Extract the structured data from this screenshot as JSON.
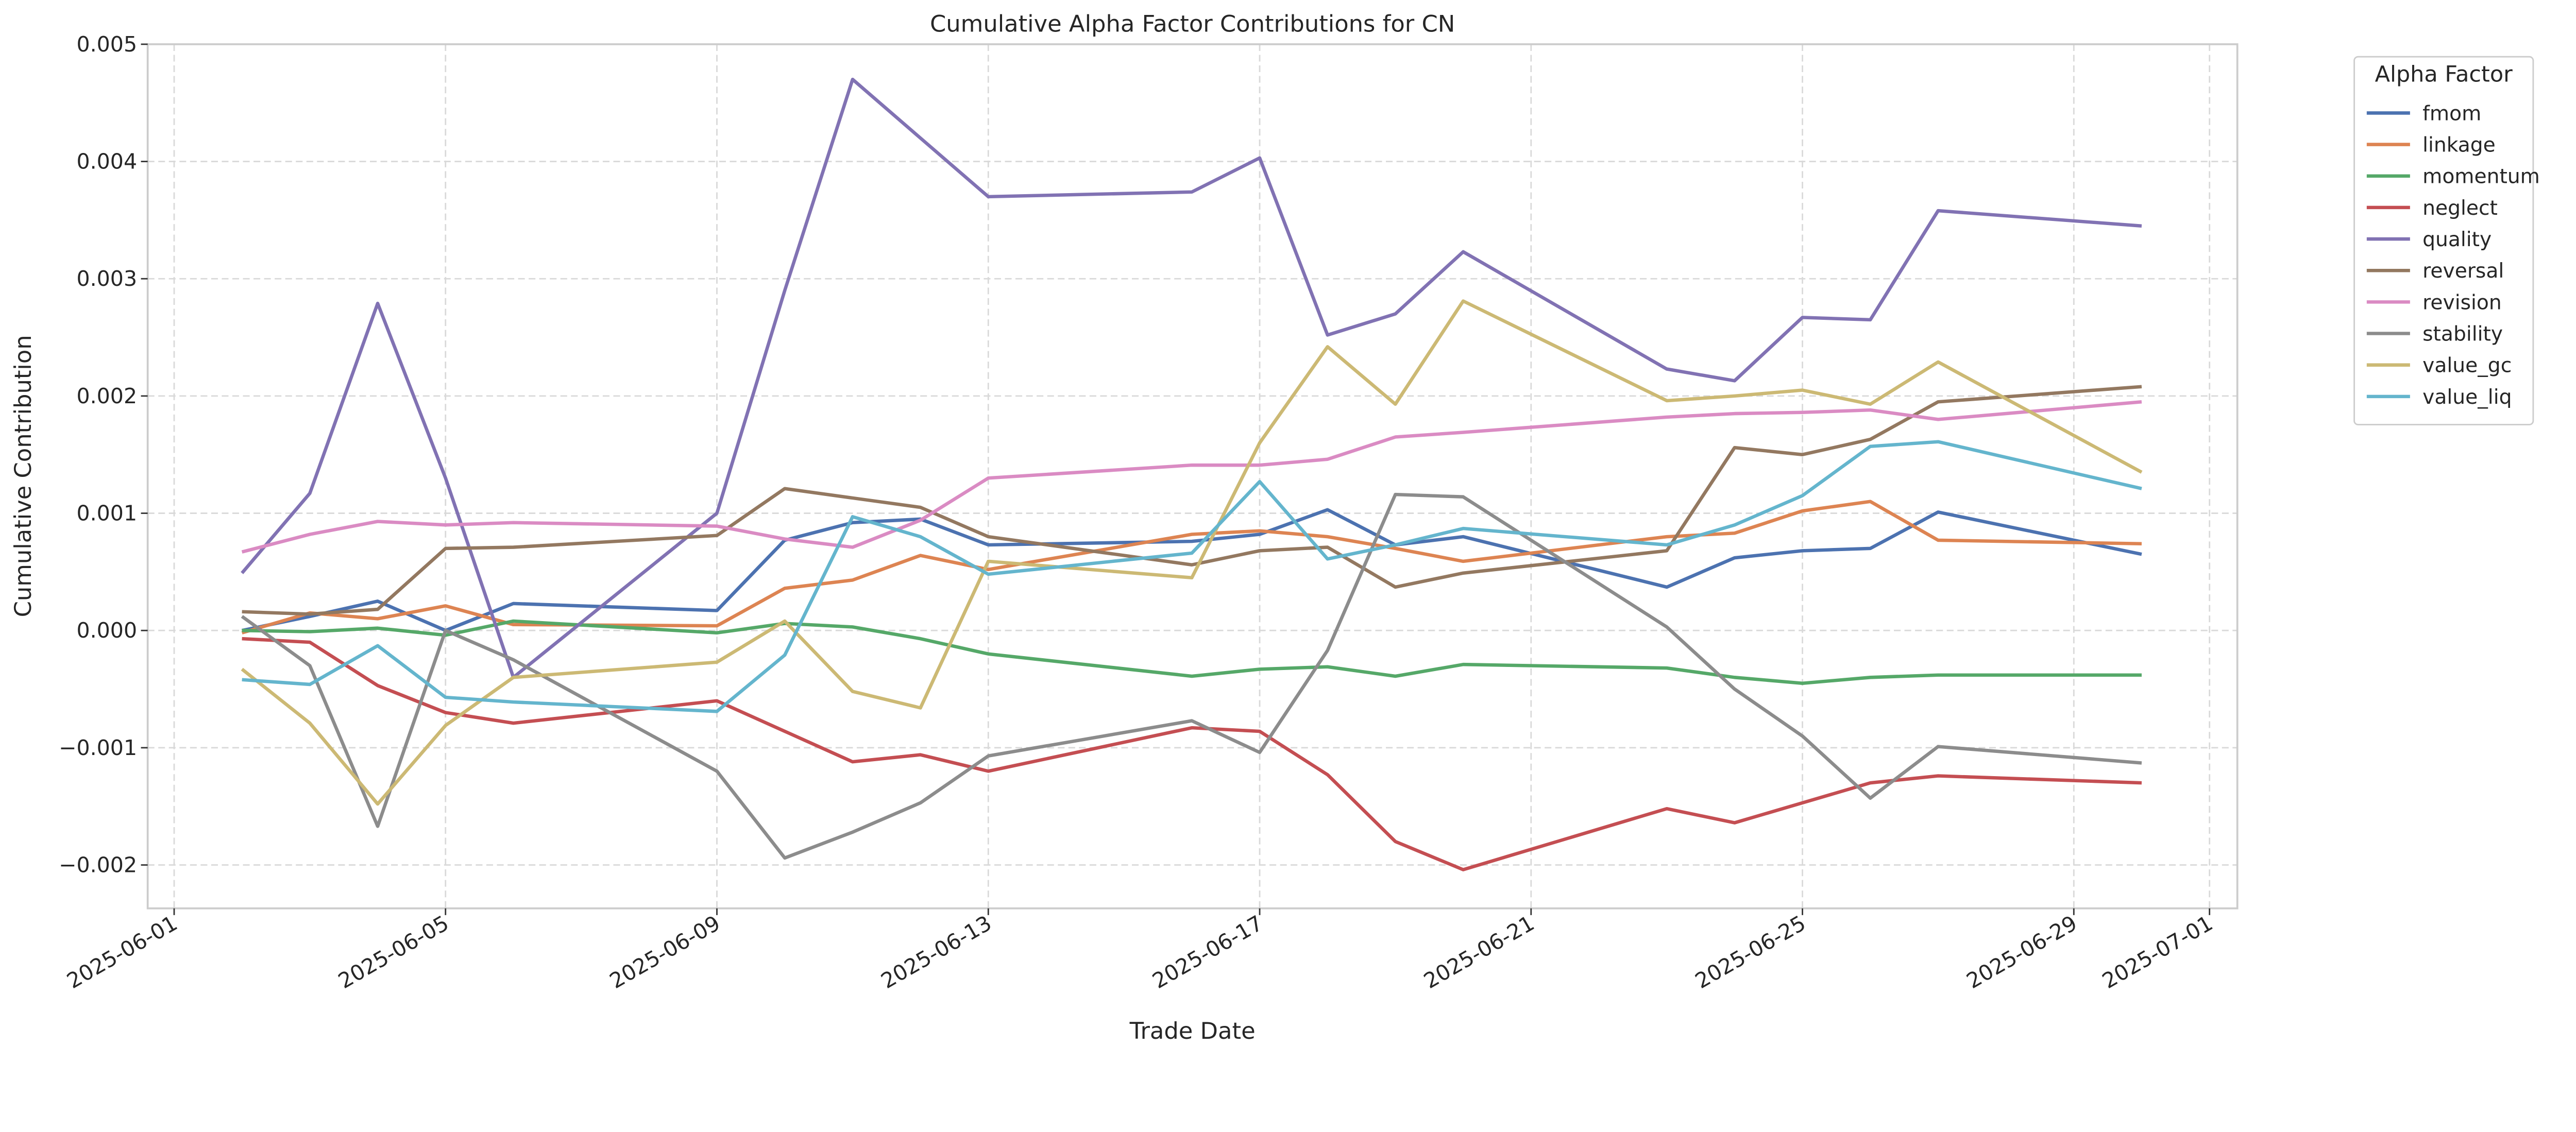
{
  "chart_data": {
    "type": "line",
    "title": "Cumulative Alpha Factor Contributions for CN",
    "xlabel": "Trade Date",
    "ylabel": "Cumulative Contribution",
    "legend_title": "Alpha Factor",
    "legend_placement": "outside-top-right",
    "grid": true,
    "ylim": [
      -0.00237,
      0.005
    ],
    "xlim": [
      "2025-05-31",
      "2025-07-01"
    ],
    "y_ticks": [
      -0.002,
      -0.001,
      0.0,
      0.001,
      0.002,
      0.003,
      0.004,
      0.005
    ],
    "y_tick_labels": [
      "−0.002",
      "−0.001",
      "0.000",
      "0.001",
      "0.002",
      "0.003",
      "0.004",
      "0.005"
    ],
    "x_tick_labels": [
      "2025-06-01",
      "2025-06-05",
      "2025-06-09",
      "2025-06-13",
      "2025-06-17",
      "2025-06-21",
      "2025-06-25",
      "2025-06-29",
      "2025-07-01"
    ],
    "x": [
      "2025-06-02",
      "2025-06-03",
      "2025-06-04",
      "2025-06-05",
      "2025-06-06",
      "2025-06-09",
      "2025-06-10",
      "2025-06-11",
      "2025-06-12",
      "2025-06-13",
      "2025-06-16",
      "2025-06-17",
      "2025-06-18",
      "2025-06-19",
      "2025-06-20",
      "2025-06-23",
      "2025-06-24",
      "2025-06-25",
      "2025-06-26",
      "2025-06-27",
      "2025-06-30"
    ],
    "series": [
      {
        "name": "fmom",
        "color": "#4c72b0",
        "values": [
          0.0,
          0.00012,
          0.00025,
          0.0,
          0.00023,
          0.00017,
          0.00077,
          0.00092,
          0.00095,
          0.00073,
          0.00076,
          0.00082,
          0.00103,
          0.00073,
          0.0008,
          0.00037,
          0.00062,
          0.00068,
          0.0007,
          0.00101,
          0.00065
        ]
      },
      {
        "name": "linkage",
        "color": "#dd8452",
        "values": [
          -2e-05,
          0.00015,
          0.0001,
          0.00021,
          5e-05,
          4e-05,
          0.00036,
          0.00043,
          0.00064,
          0.00052,
          0.00082,
          0.00085,
          0.0008,
          0.0007,
          0.00059,
          0.0008,
          0.00083,
          0.00102,
          0.0011,
          0.00077,
          0.00074
        ]
      },
      {
        "name": "momentum",
        "color": "#55a868",
        "values": [
          0.0,
          -1e-05,
          2e-05,
          -4e-05,
          8e-05,
          -2e-05,
          6e-05,
          3e-05,
          -7e-05,
          -0.0002,
          -0.00039,
          -0.00033,
          -0.00031,
          -0.00039,
          -0.00029,
          -0.00032,
          -0.0004,
          -0.00045,
          -0.0004,
          -0.00038,
          -0.00038
        ]
      },
      {
        "name": "neglect",
        "color": "#c44e52",
        "values": [
          -7e-05,
          -0.0001,
          -0.00047,
          -0.0007,
          -0.00079,
          -0.0006,
          -0.00086,
          -0.00112,
          -0.00106,
          -0.0012,
          -0.00083,
          -0.00086,
          -0.00123,
          -0.0018,
          -0.00204,
          -0.00152,
          -0.00164,
          -0.00147,
          -0.0013,
          -0.00124,
          -0.0013
        ]
      },
      {
        "name": "quality",
        "color": "#8172b3",
        "values": [
          0.00049,
          0.00117,
          0.00279,
          0.0013,
          -0.0004,
          0.001,
          0.0029,
          0.0047,
          0.0042,
          0.0037,
          0.00374,
          0.00403,
          0.00252,
          0.0027,
          0.00323,
          0.00223,
          0.00213,
          0.00267,
          0.00265,
          0.00358,
          0.00345
        ]
      },
      {
        "name": "reversal",
        "color": "#937860",
        "values": [
          0.00016,
          0.00014,
          0.00018,
          0.0007,
          0.00071,
          0.00081,
          0.00121,
          0.00113,
          0.00105,
          0.0008,
          0.00056,
          0.00068,
          0.00071,
          0.00037,
          0.00049,
          0.00068,
          0.00156,
          0.0015,
          0.00163,
          0.00195,
          0.00208
        ]
      },
      {
        "name": "revision",
        "color": "#da8bc3",
        "values": [
          0.00067,
          0.00082,
          0.00093,
          0.0009,
          0.00092,
          0.00089,
          0.00078,
          0.00071,
          0.00094,
          0.0013,
          0.00141,
          0.00141,
          0.00146,
          0.00165,
          0.00169,
          0.00182,
          0.00185,
          0.00186,
          0.00188,
          0.0018,
          0.00195
        ]
      },
      {
        "name": "stability",
        "color": "#8c8c8c",
        "values": [
          0.00012,
          -0.0003,
          -0.00167,
          0.0,
          -0.00025,
          -0.0012,
          -0.00194,
          -0.00172,
          -0.00147,
          -0.00107,
          -0.00077,
          -0.00104,
          -0.00017,
          0.00116,
          0.00114,
          3e-05,
          -0.0005,
          -0.0009,
          -0.00143,
          -0.00099,
          -0.00113
        ]
      },
      {
        "name": "value_gc",
        "color": "#ccb974",
        "values": [
          -0.00033,
          -0.00079,
          -0.00148,
          -0.00081,
          -0.0004,
          -0.00027,
          8e-05,
          -0.00052,
          -0.00066,
          0.00059,
          0.00045,
          0.0016,
          0.00242,
          0.00193,
          0.00281,
          0.00196,
          0.002,
          0.00205,
          0.00193,
          0.00229,
          0.00135
        ]
      },
      {
        "name": "value_liq",
        "color": "#64b5cd",
        "values": [
          -0.00042,
          -0.00046,
          -0.00013,
          -0.00057,
          -0.00061,
          -0.00069,
          -0.00021,
          0.00097,
          0.0008,
          0.00048,
          0.00066,
          0.00127,
          0.00061,
          0.00073,
          0.00087,
          0.00073,
          0.0009,
          0.00115,
          0.00157,
          0.00161,
          0.00121
        ]
      }
    ]
  }
}
